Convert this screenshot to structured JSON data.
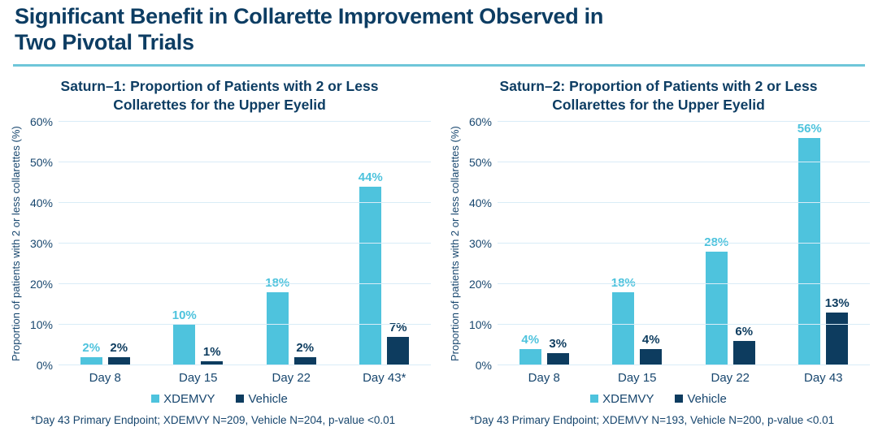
{
  "header": {
    "title_line1": "Significant Benefit in Collarette Improvement Observed in",
    "title_line2": "Two Pivotal Trials"
  },
  "colors": {
    "title_navy": "#0d3d63",
    "axis_text_blue": "#17466e",
    "divider_cyan": "#6ec6d9",
    "xdemvy_cyan": "#4ec3dd",
    "vehicle_navy": "#0d3c5f",
    "gridline_light_blue": "#d9ecf7"
  },
  "chart_data": [
    {
      "type": "bar",
      "title": "Saturn–1: Proportion of Patients with 2 or Less Collarettes for the Upper Eyelid",
      "ylabel": "Proportion of patients with 2 or less collarettes (%)",
      "ylim": [
        0,
        60
      ],
      "ytick_step": 10,
      "ytick_labels": [
        "0%",
        "10%",
        "20%",
        "30%",
        "40%",
        "50%",
        "60%"
      ],
      "grid": true,
      "legend_position": "bottom",
      "categories": [
        "Day 8",
        "Day 15",
        "Day 22",
        "Day 43*"
      ],
      "series": [
        {
          "name": "XDEMVY",
          "color": "#4ec3dd",
          "values": [
            2,
            10,
            18,
            44
          ],
          "labels": [
            "2%",
            "10%",
            "18%",
            "44%"
          ]
        },
        {
          "name": "Vehicle",
          "color": "#0d3c5f",
          "values": [
            2,
            1,
            2,
            7
          ],
          "labels": [
            "2%",
            "1%",
            "2%",
            "7%"
          ]
        }
      ],
      "footnote": "*Day 43 Primary Endpoint; XDEMVY N=209, Vehicle N=204, p-value <0.01"
    },
    {
      "type": "bar",
      "title": "Saturn–2: Proportion of Patients with 2 or Less Collarettes for the Upper Eyelid",
      "ylabel": "Proportion of patients with 2 or less collarettes (%)",
      "ylim": [
        0,
        60
      ],
      "ytick_step": 10,
      "ytick_labels": [
        "0%",
        "10%",
        "20%",
        "30%",
        "40%",
        "50%",
        "60%"
      ],
      "grid": true,
      "legend_position": "bottom",
      "categories": [
        "Day 8",
        "Day 15",
        "Day 22",
        "Day 43"
      ],
      "series": [
        {
          "name": "XDEMVY",
          "color": "#4ec3dd",
          "values": [
            4,
            18,
            28,
            56
          ],
          "labels": [
            "4%",
            "18%",
            "28%",
            "56%"
          ]
        },
        {
          "name": "Vehicle",
          "color": "#0d3c5f",
          "values": [
            3,
            4,
            6,
            13
          ],
          "labels": [
            "3%",
            "4%",
            "6%",
            "13%"
          ]
        }
      ],
      "footnote": "*Day 43 Primary Endpoint; XDEMVY N=193, Vehicle N=200, p-value <0.01"
    }
  ]
}
